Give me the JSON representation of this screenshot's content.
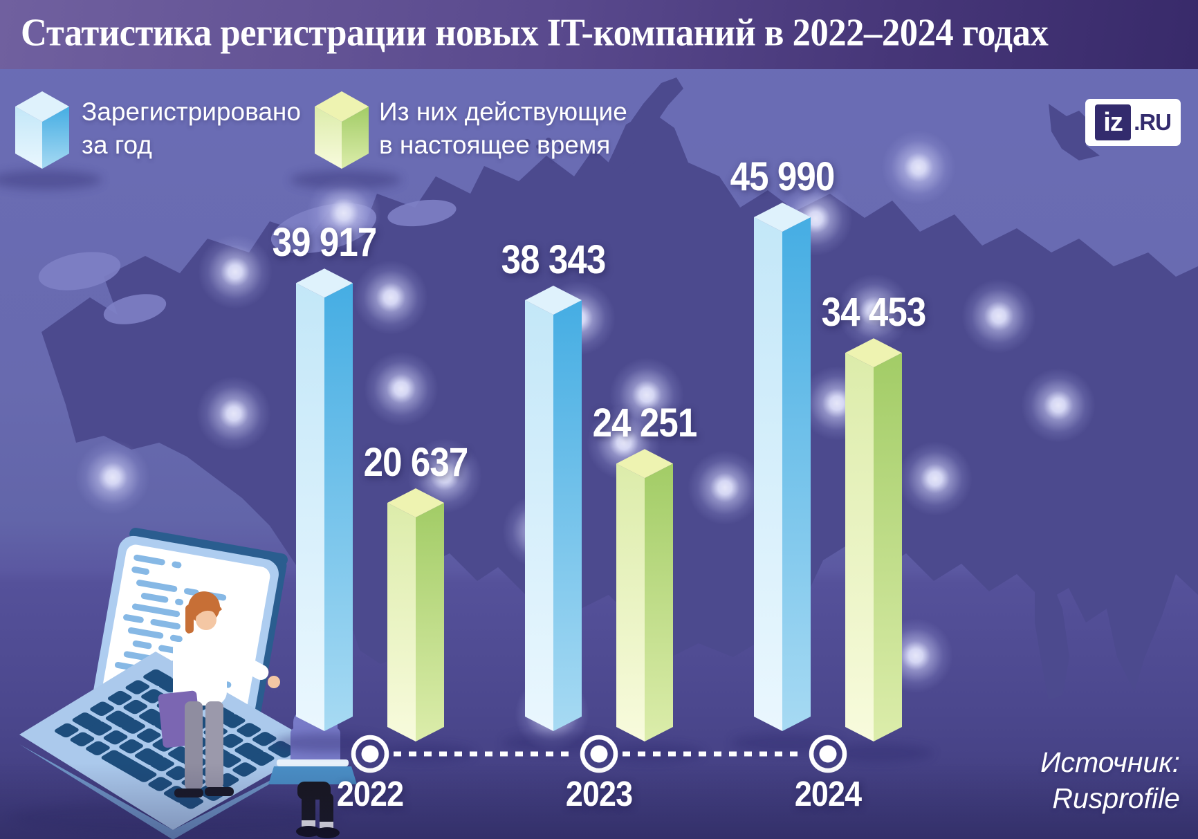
{
  "header": {
    "title": "Статистика регистрации новых IT-компаний в 2022–2024 годах"
  },
  "legend": {
    "items": [
      {
        "line1": "Зарегистрировано",
        "line2": "за год",
        "color": "#5ab5e8"
      },
      {
        "line1": "Из них действующие",
        "line2": "в настоящее время",
        "color": "#a9d06e"
      }
    ]
  },
  "logo": {
    "mark": "iz",
    "suffix": ".RU"
  },
  "chart_data": {
    "type": "bar",
    "title": "Статистика регистрации новых IT-компаний в 2022–2024 годах",
    "categories": [
      "2022",
      "2023",
      "2024"
    ],
    "series": [
      {
        "name": "Зарегистрировано за год",
        "values": [
          39917,
          38343,
          45990
        ],
        "labels": [
          "39 917",
          "38 343",
          "45 990"
        ],
        "color": "#5ab5e8"
      },
      {
        "name": "Из них действующие в настоящее время",
        "values": [
          20637,
          24251,
          34453
        ],
        "labels": [
          "20 637",
          "24 251",
          "34 453"
        ],
        "color": "#a9d06e"
      }
    ],
    "ylim": [
      0,
      46000
    ],
    "xlabel": "",
    "ylabel": "",
    "grid": false,
    "legend_position": "top-left",
    "style": "isometric-3d-columns"
  },
  "timeline": {
    "years": [
      "2022",
      "2023",
      "2024"
    ]
  },
  "source": {
    "line1": "Источник:",
    "line2": "Rusprofile"
  },
  "colors": {
    "background_top": "#6b6db6",
    "background_bottom": "#3f3b7b",
    "map": "#4c4a8e",
    "map_light": "#7e80c6",
    "header_left": "#70609f",
    "header_right": "#382a6a",
    "text": "#ffffff",
    "logo_navy": "#332b6d",
    "blue_top": "#dff2fc",
    "blue_left_a": "#c3e7f8",
    "blue_left_b": "#eaf7fe",
    "blue_right_a": "#45ade3",
    "blue_right_b": "#a7daf3",
    "green_top": "#eef3b1",
    "green_left_a": "#dcecaa",
    "green_left_b": "#f8fbdd",
    "green_right_a": "#a2cc66",
    "green_right_b": "#dcedab"
  }
}
